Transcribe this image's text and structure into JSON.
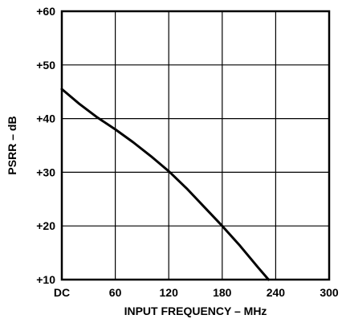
{
  "chart_data": {
    "type": "line",
    "title": "",
    "xlabel": "INPUT FREQUENCY – MHz",
    "ylabel": "PSRR – dB",
    "xlim": [
      0,
      300
    ],
    "ylim": [
      10,
      60
    ],
    "x_ticks": [
      {
        "value": 0,
        "label": "DC"
      },
      {
        "value": 60,
        "label": "60"
      },
      {
        "value": 120,
        "label": "120"
      },
      {
        "value": 180,
        "label": "180"
      },
      {
        "value": 240,
        "label": "240"
      },
      {
        "value": 300,
        "label": "300"
      }
    ],
    "y_ticks": [
      {
        "value": 10,
        "label": "+10"
      },
      {
        "value": 20,
        "label": "+20"
      },
      {
        "value": 30,
        "label": "+30"
      },
      {
        "value": 40,
        "label": "+40"
      },
      {
        "value": 50,
        "label": "+50"
      },
      {
        "value": 60,
        "label": "+60"
      }
    ],
    "grid": true,
    "legend": "none",
    "series": [
      {
        "x": [
          0,
          20,
          40,
          60,
          80,
          100,
          120,
          140,
          160,
          180,
          200,
          220,
          232
        ],
        "y": [
          45.5,
          42.7,
          40.2,
          38.0,
          35.6,
          33.0,
          30.2,
          27.0,
          23.5,
          20.0,
          16.3,
          12.3,
          10.0
        ]
      }
    ]
  }
}
